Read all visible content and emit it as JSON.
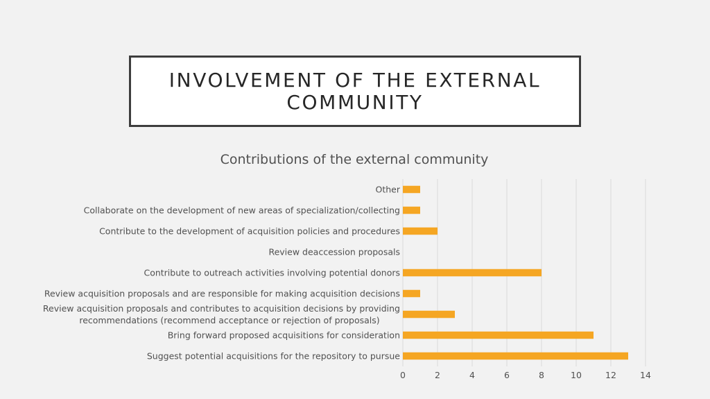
{
  "slide": {
    "title": "INVOLVEMENT OF THE EXTERNAL COMMUNITY"
  },
  "colors": {
    "bar": "#f5a623",
    "grid": "#d9d9d9",
    "background": "#f2f2f2"
  },
  "chart_data": {
    "type": "bar",
    "orientation": "horizontal",
    "title": "Contributions of the external community",
    "xlabel": "",
    "ylabel": "",
    "xlim": [
      0,
      14
    ],
    "xticks": [
      0,
      2,
      4,
      6,
      8,
      10,
      12,
      14
    ],
    "grid": "vertical",
    "legend": "none",
    "categories": [
      "Other",
      "Collaborate on the development of new areas of specialization/collecting",
      "Contribute to the development of acquisition policies and procedures",
      "Review deaccession proposals",
      "Contribute to outreach activities involving potential donors",
      "Review acquisition proposals and are responsible for making acquisition decisions",
      "Review acquisition proposals and contributes to acquisition decisions by providing recommendations (recommend acceptance or rejection of proposals)",
      "Bring forward proposed acquisitions for consideration",
      "Suggest potential acquisitions for the repository to pursue"
    ],
    "category_lines": [
      [
        "Other"
      ],
      [
        "Collaborate on the development of new areas of specialization/collecting"
      ],
      [
        "Contribute to the development of acquisition policies and procedures"
      ],
      [
        "Review deaccession proposals"
      ],
      [
        "Contribute to outreach activities involving potential donors"
      ],
      [
        "Review acquisition proposals and are responsible for making acquisition decisions"
      ],
      [
        "Review acquisition proposals and contributes to acquisition decisions by providing",
        "recommendations (recommend acceptance or rejection of proposals)"
      ],
      [
        "Bring forward proposed acquisitions for consideration"
      ],
      [
        "Suggest potential acquisitions for the repository to pursue"
      ]
    ],
    "values": [
      1,
      1,
      2,
      0,
      8,
      1,
      3,
      11,
      13
    ]
  }
}
